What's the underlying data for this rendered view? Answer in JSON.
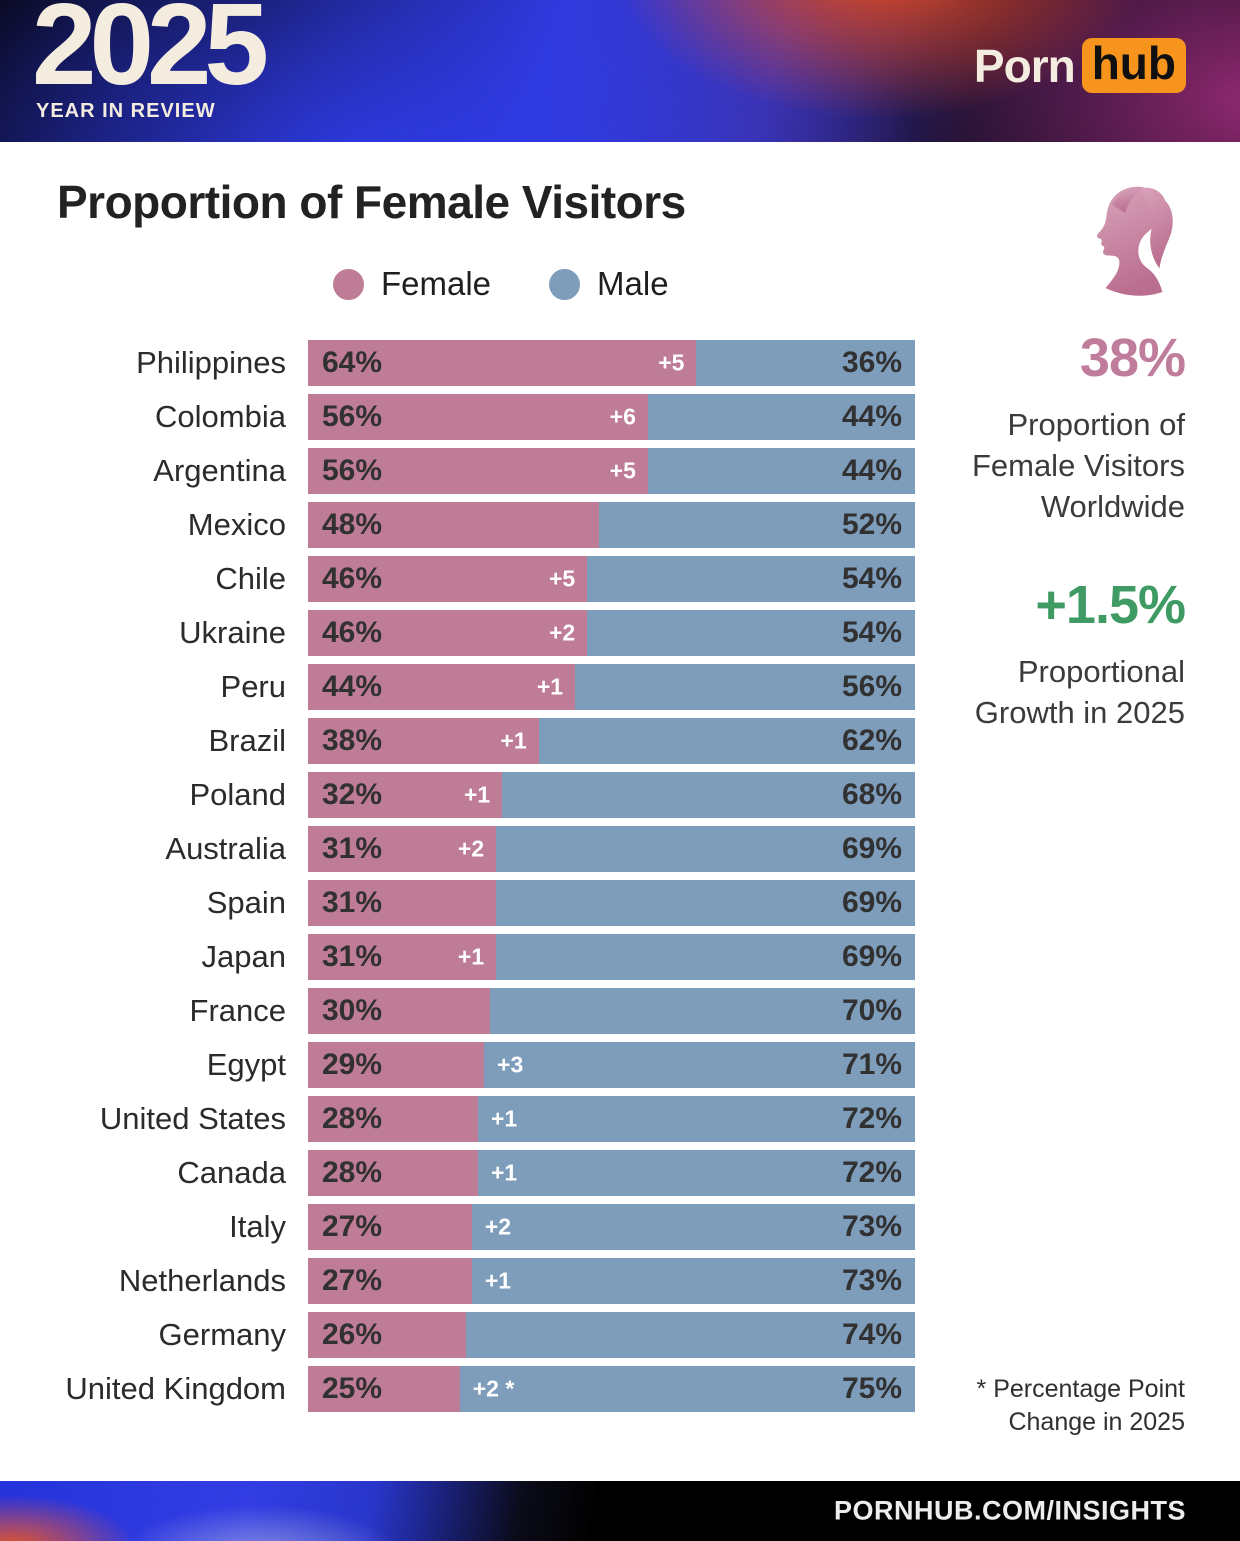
{
  "header": {
    "year": "2025",
    "tagline": "YEAR IN REVIEW",
    "brand": {
      "porn": "Porn",
      "hub": "hub"
    }
  },
  "title": "Proportion of Female Visitors",
  "legend": [
    {
      "label": "Female",
      "color": "#bf7c96"
    },
    {
      "label": "Male",
      "color": "#7d9dbb"
    }
  ],
  "chart_data": {
    "type": "bar",
    "orientation": "horizontal",
    "stacked": true,
    "unit": "%",
    "title": "Proportion of Female Visitors",
    "xlim": [
      0,
      100
    ],
    "legend_position": "top",
    "categories": [
      "Philippines",
      "Colombia",
      "Argentina",
      "Mexico",
      "Chile",
      "Ukraine",
      "Peru",
      "Brazil",
      "Poland",
      "Australia",
      "Spain",
      "Japan",
      "France",
      "Egypt",
      "United States",
      "Canada",
      "Italy",
      "Netherlands",
      "Germany",
      "United Kingdom"
    ],
    "series": [
      {
        "name": "Female",
        "color": "#bf7c96",
        "values": [
          64,
          56,
          56,
          48,
          46,
          46,
          44,
          38,
          32,
          31,
          31,
          31,
          30,
          29,
          28,
          28,
          27,
          27,
          26,
          25
        ]
      },
      {
        "name": "Male",
        "color": "#7d9dbb",
        "values": [
          36,
          44,
          44,
          52,
          54,
          54,
          56,
          62,
          68,
          69,
          69,
          69,
          70,
          71,
          72,
          72,
          73,
          73,
          74,
          75
        ]
      }
    ],
    "change_labels": [
      "+5",
      "+6",
      "+5",
      "",
      "+5",
      "+2",
      "+1",
      "+1",
      "+1",
      "+2",
      "",
      "+1",
      "",
      "+3",
      "+1",
      "+1",
      "+2",
      "+1",
      "",
      "+2 *"
    ]
  },
  "stats": [
    {
      "value": "38%",
      "label": "Proportion of Female Visitors Worldwide",
      "color": "#c07d9b"
    },
    {
      "value": "+1.5%",
      "label": "Proportional Growth in 2025",
      "color": "#3f9b63"
    }
  ],
  "icons": {
    "female_profile": "female-profile-silhouette"
  },
  "footnote": "* Percentage Point Change in 2025",
  "footer": {
    "url": "PORNHUB.COM/INSIGHTS"
  }
}
